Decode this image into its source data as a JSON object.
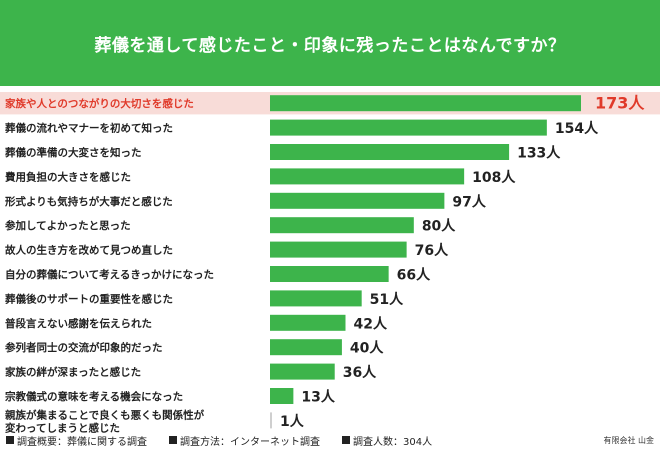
{
  "header": {
    "title": "葬儀を通して感じたこと・印象に残ったことはなんですか？"
  },
  "colors": {
    "header_bg": "#3db44b",
    "bar": "#3db44b",
    "highlight_text": "#e03a2a",
    "highlight_bg": "#f8dcd8"
  },
  "chart_data": {
    "type": "bar",
    "orientation": "horizontal",
    "title": "葬儀を通して感じたこと・印象に残ったことはなんですか？",
    "unit": "人",
    "categories": [
      [
        "家族や人とのつながりの大切さを感じた"
      ],
      [
        "葬儀の流れやマナーを初めて知った"
      ],
      [
        "葬儀の準備の大変さを知った"
      ],
      [
        "費用負担の大きさを感じた"
      ],
      [
        "形式よりも気持ちが大事だと感じた"
      ],
      [
        "参加してよかったと思った"
      ],
      [
        "故人の生き方を改めて見つめ直した"
      ],
      [
        "自分の葬儀について考えるきっかけになった"
      ],
      [
        "葬儀後のサポートの重要性を感じた"
      ],
      [
        "普段言えない感謝を伝えられた"
      ],
      [
        "参列者同士の交流が印象的だった"
      ],
      [
        "家族の絆が深まったと感じた"
      ],
      [
        "宗教儀式の意味を考える機会になった"
      ],
      [
        "親族が集まることで良くも悪くも関係性が",
        "変わってしまうと感じた"
      ]
    ],
    "values": [
      173,
      154,
      133,
      108,
      97,
      80,
      76,
      66,
      51,
      42,
      40,
      36,
      13,
      1
    ],
    "value_labels": [
      "173人",
      "154人",
      "133人",
      "108人",
      "97人",
      "80人",
      "76人",
      "66人",
      "51人",
      "42人",
      "40人",
      "36人",
      "13人",
      "1人"
    ],
    "highlight_index": 0
  },
  "footer": {
    "notes": [
      "調査概要：葬儀に関する調査",
      "調査方法：インターネット調査",
      "調査人数：304人"
    ],
    "credit": "有限会社 山金"
  }
}
